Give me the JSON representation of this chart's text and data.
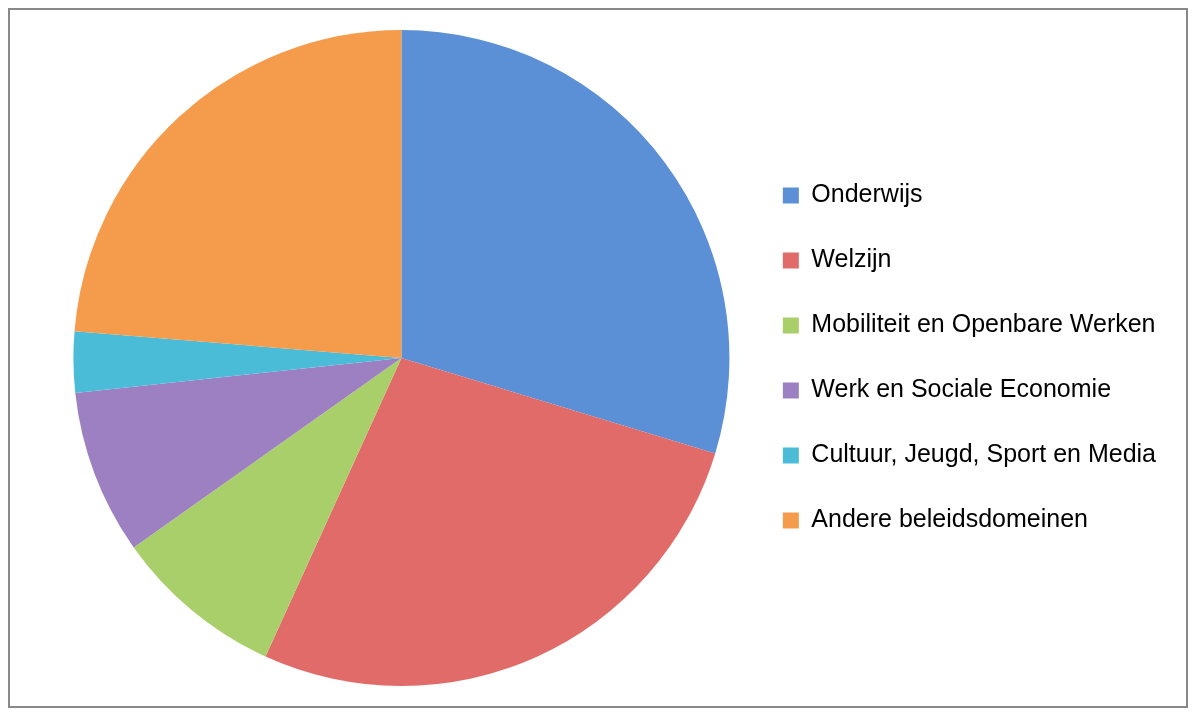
{
  "chart_data": {
    "type": "pie",
    "categories": [
      "Onderwijs",
      "Welzijn",
      "Mobiliteit en Openbare Werken",
      "Werk en Sociale Economie",
      "Cultuur, Jeugd, Sport en Media",
      "Andere beleidsdomeinen"
    ],
    "values": [
      29.7,
      27.1,
      8.4,
      8.1,
      3.0,
      23.7
    ],
    "colors": [
      "#5b8fd6",
      "#e06b68",
      "#a9cf6a",
      "#9c80c2",
      "#4bbcd8",
      "#f59b4c"
    ],
    "legend": "right"
  }
}
